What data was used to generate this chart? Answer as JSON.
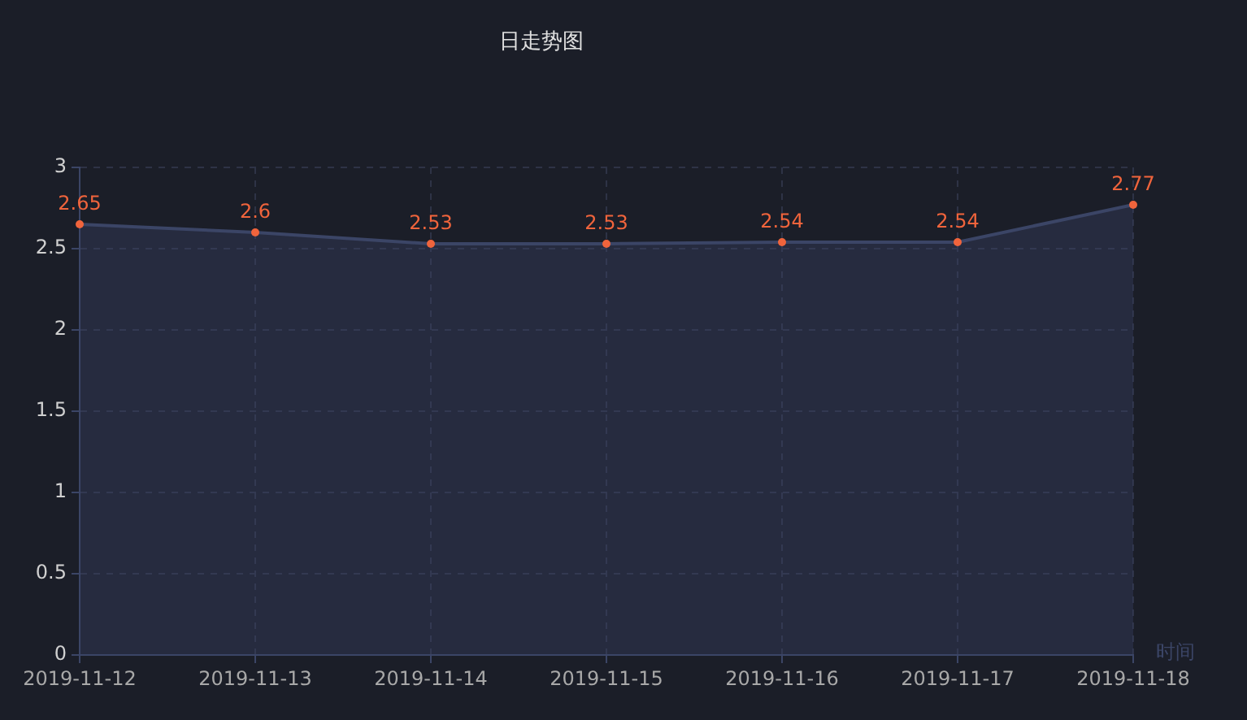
{
  "chart_data": {
    "type": "area",
    "title": "日走势图",
    "xlabel": "时间",
    "categories": [
      "2019-11-12",
      "2019-11-13",
      "2019-11-14",
      "2019-11-15",
      "2019-11-16",
      "2019-11-17",
      "2019-11-18"
    ],
    "series": [
      {
        "color": "#3b4566",
        "values": [
          2.65,
          2.6,
          2.53,
          2.53,
          2.54,
          2.54,
          2.77
        ]
      }
    ],
    "ylim": [
      0,
      3
    ],
    "yticks": [
      0,
      0.5,
      1,
      1.5,
      2,
      2.5,
      3
    ],
    "grid": true,
    "legend": false,
    "marker": "circle",
    "data_labels": true
  }
}
